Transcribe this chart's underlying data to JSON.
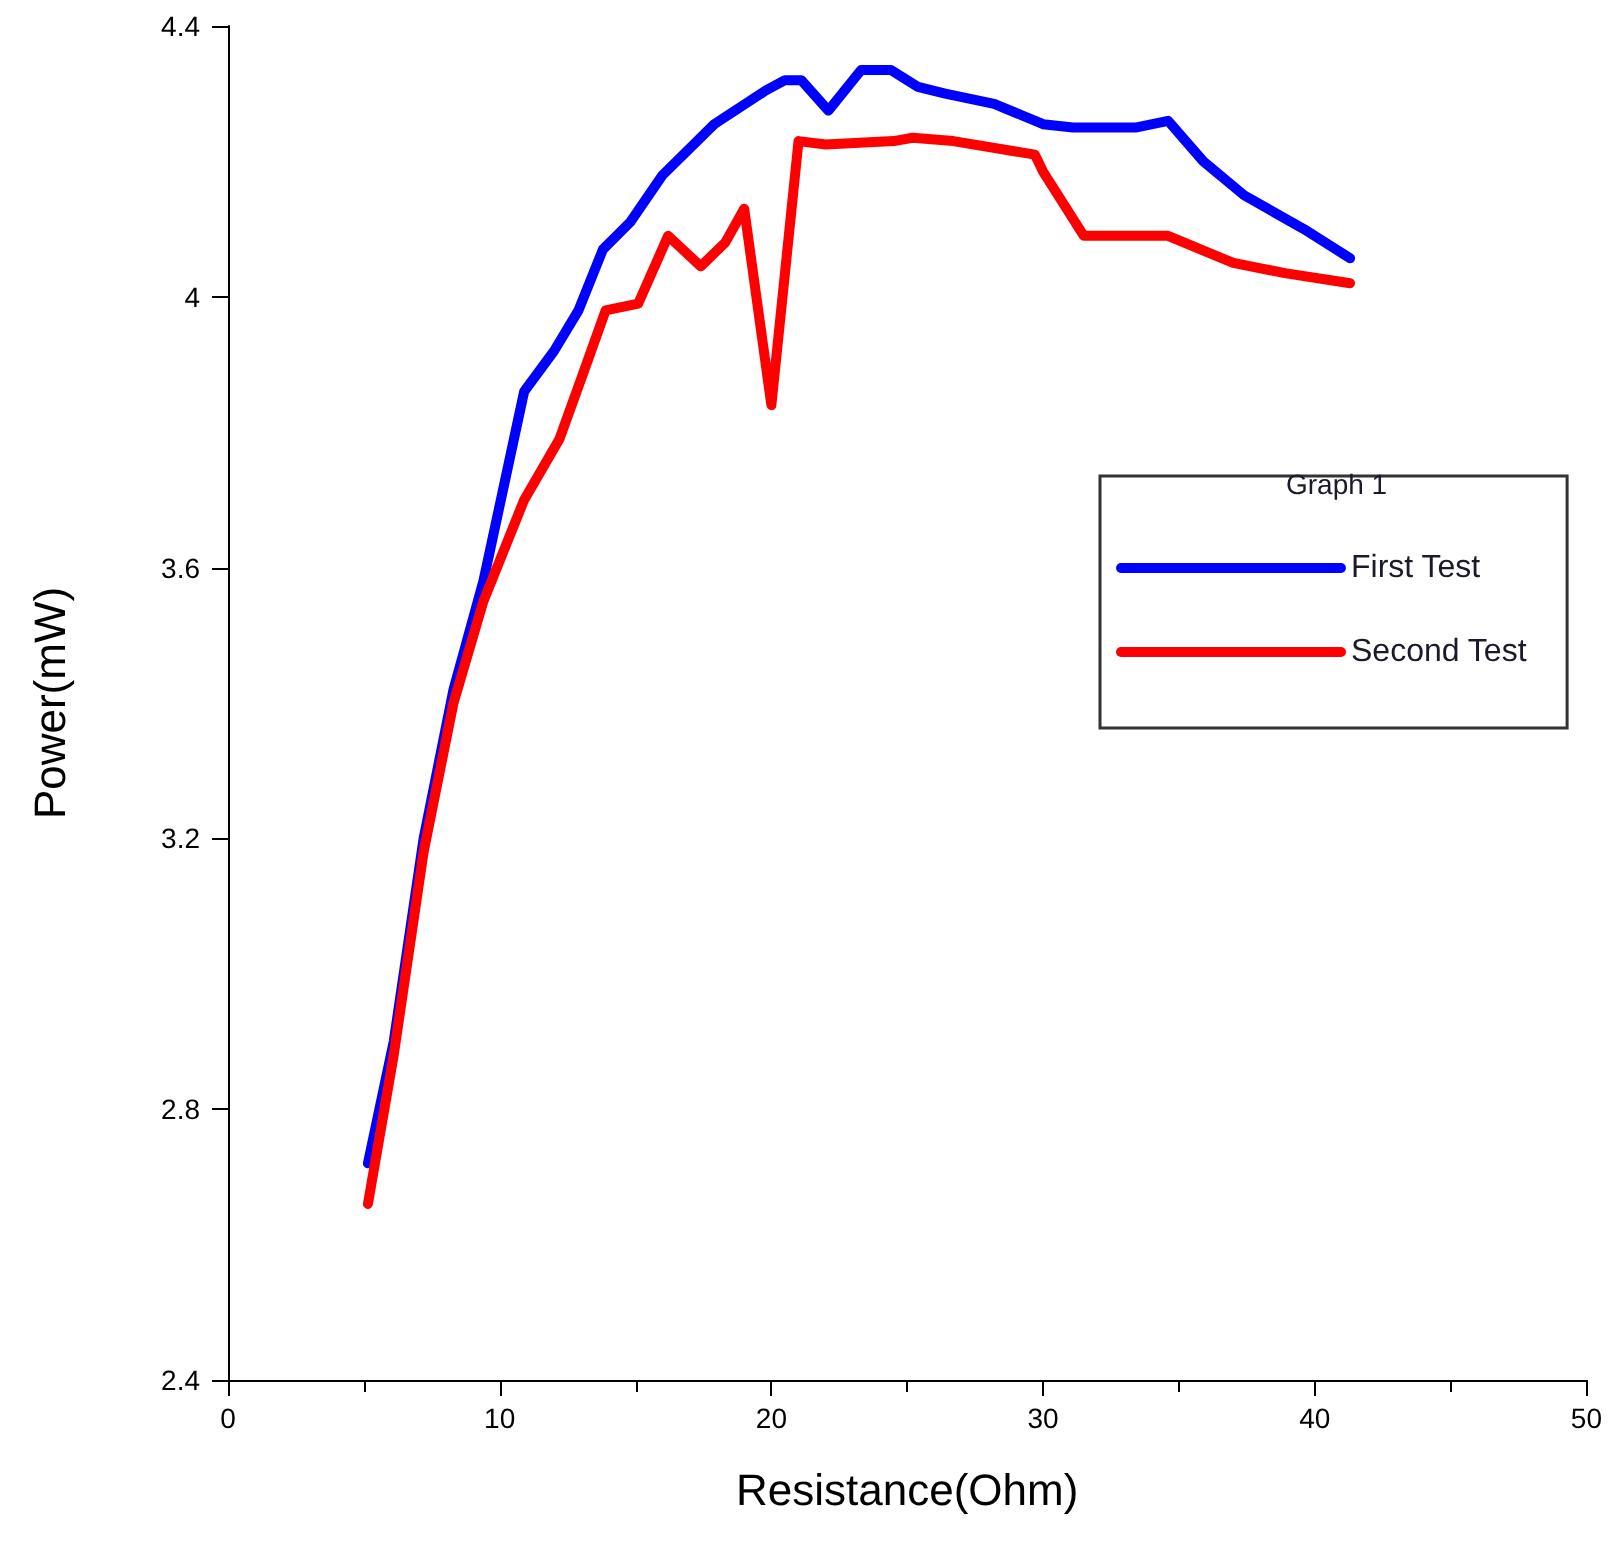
{
  "chart_data": {
    "type": "line",
    "xlabel": "Resistance(Ohm)",
    "ylabel": "Power(mW)",
    "legend_title": "Graph 1",
    "xlim": [
      0,
      50
    ],
    "xticks": [
      0,
      10,
      20,
      30,
      40,
      50
    ],
    "ylim": [
      2.4,
      4.4
    ],
    "yticks": [
      2.4,
      2.8,
      3.2,
      3.6,
      4,
      4.4
    ],
    "grid": false,
    "legend": "right",
    "marker": "none",
    "line_style": "solid",
    "series": [
      {
        "name": "First Test",
        "color": "#0000ff",
        "x": [
          5.15,
          6.1,
          7.2,
          8.3,
          9.4,
          10.9,
          12.0,
          12.9,
          13.8,
          14.8,
          16.0,
          17.9,
          19.8,
          20.5,
          21.1,
          22.1,
          23.3,
          24.4,
          25.4,
          26.4,
          28.2,
          30.0,
          31.1,
          33.4,
          34.6,
          35.9,
          37.4,
          39.6,
          41.3
        ],
        "values": [
          2.72,
          2.9,
          3.2,
          3.42,
          3.58,
          3.86,
          3.92,
          3.98,
          4.07,
          4.11,
          4.18,
          4.255,
          4.305,
          4.32,
          4.32,
          4.275,
          4.335,
          4.335,
          4.31,
          4.3,
          4.285,
          4.255,
          4.25,
          4.25,
          4.26,
          4.2,
          4.15,
          4.1,
          4.057
        ]
      },
      {
        "name": "Second Test",
        "color": "#ff0000",
        "x": [
          5.15,
          6.1,
          7.2,
          8.3,
          9.4,
          10.9,
          12.2,
          13.1,
          13.9,
          15.1,
          16.2,
          17.4,
          18.3,
          19.0,
          20.0,
          21.0,
          22.0,
          24.5,
          25.2,
          26.7,
          29.7,
          30.0,
          31.5,
          34.6,
          37.0,
          38.9,
          41.3
        ],
        "values": [
          2.66,
          2.88,
          3.18,
          3.4,
          3.55,
          3.7,
          3.79,
          3.89,
          3.98,
          3.99,
          4.09,
          4.045,
          4.08,
          4.13,
          3.84,
          4.23,
          4.225,
          4.23,
          4.235,
          4.23,
          4.21,
          4.185,
          4.09,
          4.09,
          4.05,
          4.035,
          4.02
        ]
      }
    ]
  }
}
